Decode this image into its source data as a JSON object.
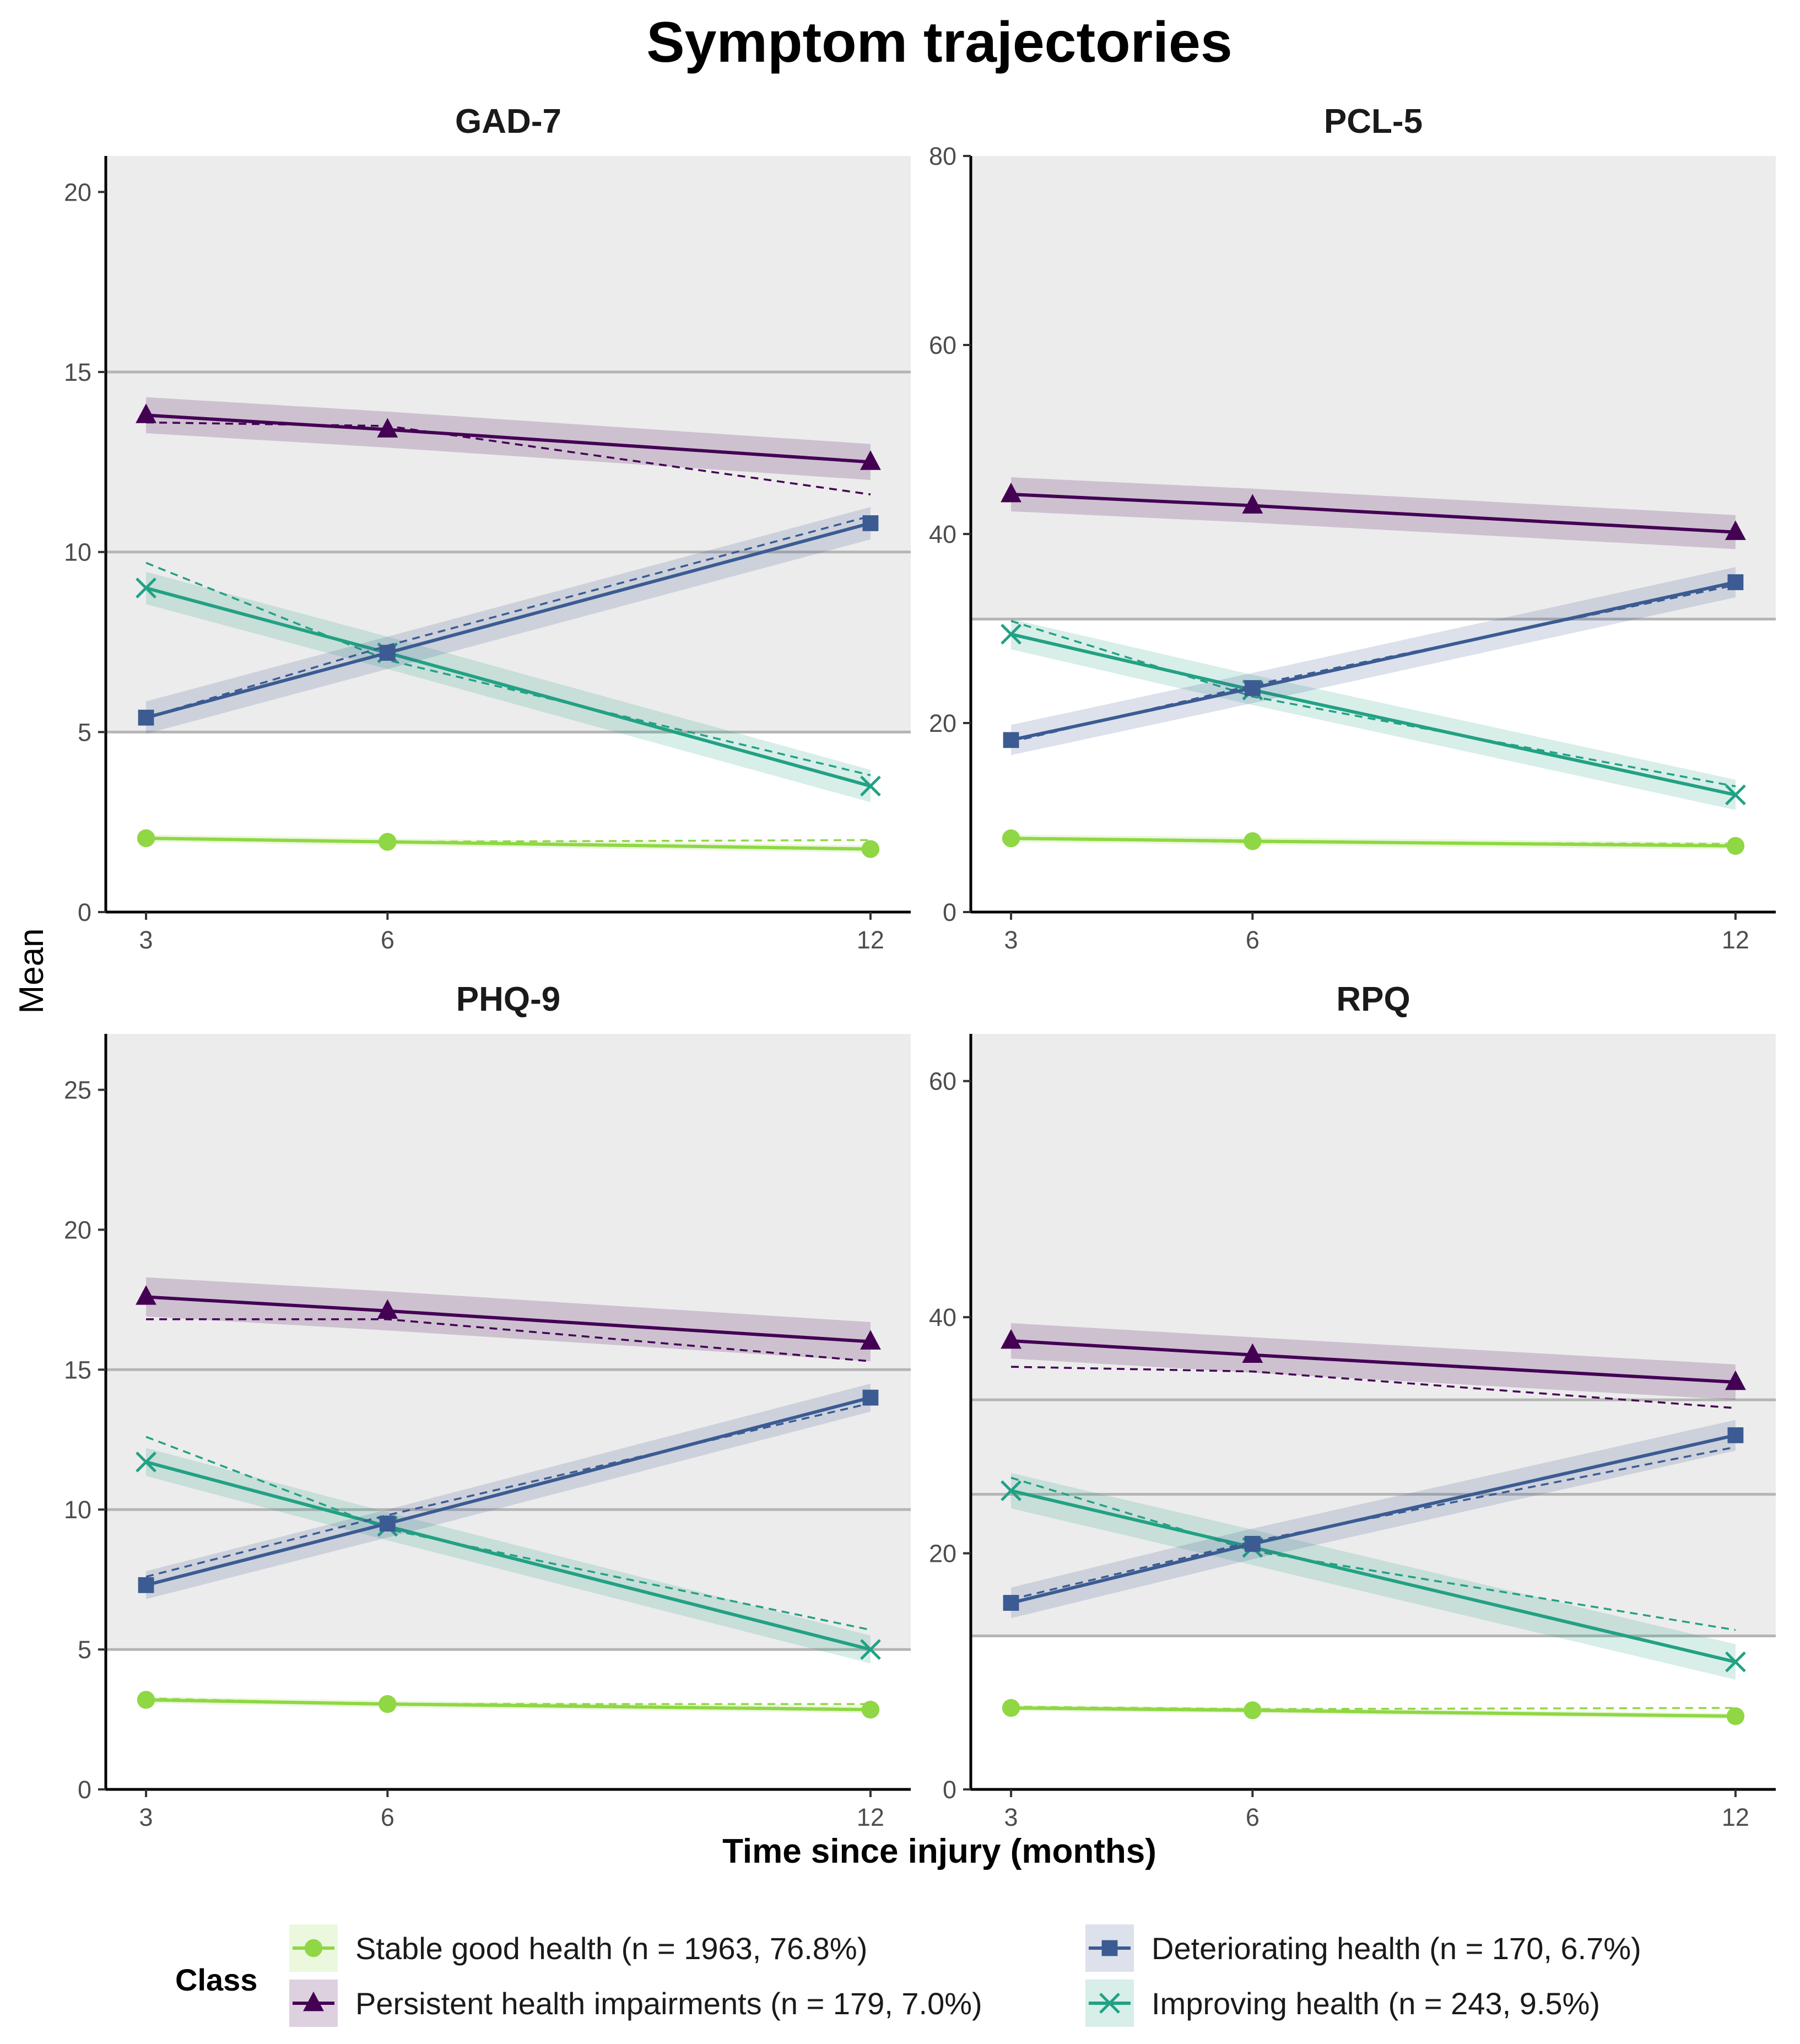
{
  "title": "Symptom trajectories",
  "x_axis_title": "Time since injury (months)",
  "y_axis_title": "Mean",
  "legend": {
    "title": "Class",
    "entries": [
      {
        "key": "stable",
        "label": "Stable good health (n = 1963, 76.8%)",
        "color": "#8fd744",
        "marker": "circle"
      },
      {
        "key": "deteriorating",
        "label": "Deteriorating health (n = 170, 6.7%)",
        "color": "#3b5b92",
        "marker": "square"
      },
      {
        "key": "persistent",
        "label": "Persistent health impairments (n = 179, 7.0%)",
        "color": "#440154",
        "marker": "triangle"
      },
      {
        "key": "improving",
        "label": "Improving health (n = 243, 9.5%)",
        "color": "#22a184",
        "marker": "x"
      }
    ]
  },
  "chart_data": [
    {
      "type": "line",
      "title": "GAD-7",
      "x": [
        3,
        6,
        12
      ],
      "xticks": [
        "3",
        "6",
        "12"
      ],
      "ylim": [
        0,
        21
      ],
      "yticks": [
        0,
        5,
        10,
        15,
        20
      ],
      "ref_lines": [
        5,
        10,
        15
      ],
      "shaded_band": [
        5,
        21
      ],
      "series": [
        {
          "key": "persistent",
          "name": "Persistent health impairments (n = 179, 7.0%)",
          "values": [
            13.8,
            13.4,
            12.5
          ],
          "observed": [
            13.6,
            13.5,
            11.6
          ],
          "band": 0.5
        },
        {
          "key": "deteriorating",
          "name": "Deteriorating health (n = 170, 6.7%)",
          "values": [
            5.4,
            7.2,
            10.8
          ],
          "observed": [
            5.4,
            7.4,
            11.0
          ],
          "band": 0.45
        },
        {
          "key": "improving",
          "name": "Improving health (n = 243, 9.5%)",
          "values": [
            9.0,
            7.2,
            3.5
          ],
          "observed": [
            9.7,
            7.0,
            3.8
          ],
          "band": 0.45
        },
        {
          "key": "stable",
          "name": "Stable good health (n = 1963, 76.8%)",
          "values": [
            2.05,
            1.95,
            1.75
          ],
          "observed": [
            2.05,
            1.95,
            2.0
          ],
          "band": 0.1
        }
      ]
    },
    {
      "type": "line",
      "title": "PCL-5",
      "x": [
        3,
        6,
        12
      ],
      "xticks": [
        "3",
        "6",
        "12"
      ],
      "ylim": [
        0,
        80
      ],
      "yticks": [
        0,
        20,
        40,
        60,
        80
      ],
      "ref_lines": [
        31
      ],
      "shaded_band": [
        31,
        80
      ],
      "series": [
        {
          "key": "persistent",
          "name": "Persistent health impairments (n = 179, 7.0%)",
          "values": [
            44.2,
            43.0,
            40.2
          ],
          "observed": [
            44.2,
            43.0,
            40.2
          ],
          "band": 1.8
        },
        {
          "key": "deteriorating",
          "name": "Deteriorating health (n = 170, 6.7%)",
          "values": [
            18.2,
            23.7,
            34.9
          ],
          "observed": [
            18.0,
            24.0,
            34.6
          ],
          "band": 1.6
        },
        {
          "key": "improving",
          "name": "Improving health (n = 243, 9.5%)",
          "values": [
            29.4,
            23.5,
            12.4
          ],
          "observed": [
            30.8,
            22.8,
            13.3
          ],
          "band": 1.6
        },
        {
          "key": "stable",
          "name": "Stable good health (n = 1963, 76.8%)",
          "values": [
            7.8,
            7.5,
            7.0
          ],
          "observed": [
            7.8,
            7.4,
            7.2
          ],
          "band": 0.4
        }
      ]
    },
    {
      "type": "line",
      "title": "PHQ-9",
      "x": [
        3,
        6,
        12
      ],
      "xticks": [
        "3",
        "6",
        "12"
      ],
      "ylim": [
        0,
        27
      ],
      "yticks": [
        0,
        5,
        10,
        15,
        20,
        25
      ],
      "ref_lines": [
        5,
        10,
        15
      ],
      "shaded_band": [
        5,
        27
      ],
      "series": [
        {
          "key": "persistent",
          "name": "Persistent health impairments (n = 179, 7.0%)",
          "values": [
            17.6,
            17.1,
            16.0
          ],
          "observed": [
            16.8,
            16.8,
            15.3
          ],
          "band": 0.7
        },
        {
          "key": "deteriorating",
          "name": "Deteriorating health (n = 170, 6.7%)",
          "values": [
            7.3,
            9.5,
            14.0
          ],
          "observed": [
            7.6,
            9.8,
            13.8
          ],
          "band": 0.5
        },
        {
          "key": "improving",
          "name": "Improving health (n = 243, 9.5%)",
          "values": [
            11.7,
            9.4,
            5.0
          ],
          "observed": [
            12.6,
            9.3,
            5.7
          ],
          "band": 0.5
        },
        {
          "key": "stable",
          "name": "Stable good health (n = 1963, 76.8%)",
          "values": [
            3.2,
            3.05,
            2.85
          ],
          "observed": [
            3.25,
            3.05,
            3.05
          ],
          "band": 0.12
        }
      ]
    },
    {
      "type": "line",
      "title": "RPQ",
      "x": [
        3,
        6,
        12
      ],
      "xticks": [
        "3",
        "6",
        "12"
      ],
      "ylim": [
        0,
        64
      ],
      "yticks": [
        0,
        20,
        40,
        60
      ],
      "ref_lines": [
        13,
        25,
        33
      ],
      "shaded_band": [
        13,
        64
      ],
      "series": [
        {
          "key": "persistent",
          "name": "Persistent health impairments (n = 179, 7.0%)",
          "values": [
            38.0,
            36.8,
            34.5
          ],
          "observed": [
            35.8,
            35.4,
            32.3
          ],
          "band": 1.5
        },
        {
          "key": "deteriorating",
          "name": "Deteriorating health (n = 170, 6.7%)",
          "values": [
            15.8,
            20.8,
            30.0
          ],
          "observed": [
            16.1,
            21.0,
            29.0
          ],
          "band": 1.3
        },
        {
          "key": "improving",
          "name": "Improving health (n = 243, 9.5%)",
          "values": [
            25.3,
            20.5,
            10.8
          ],
          "observed": [
            26.4,
            20.2,
            13.5
          ],
          "band": 1.5
        },
        {
          "key": "stable",
          "name": "Stable good health (n = 1963, 76.8%)",
          "values": [
            6.9,
            6.7,
            6.2
          ],
          "observed": [
            7.0,
            6.8,
            6.9
          ],
          "band": 0.25
        }
      ]
    }
  ]
}
